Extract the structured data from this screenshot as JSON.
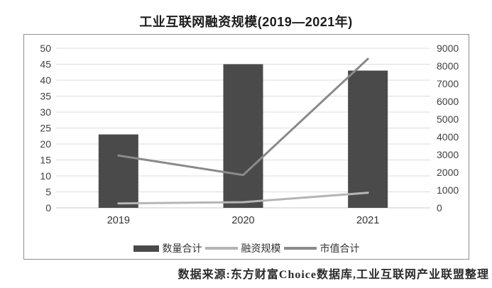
{
  "source_note": "数据来源:东方财富Choice数据库,工业互联网产业联盟整理",
  "chart_data": {
    "type": "combo",
    "title": "工业互联网融资规模(2019—2021年)",
    "categories": [
      "2019",
      "2020",
      "2021"
    ],
    "series": [
      {
        "name": "数量合计",
        "type": "bar",
        "axis": "left",
        "values": [
          23,
          45,
          43
        ],
        "color": "#4a4a4a"
      },
      {
        "name": "融资规模",
        "type": "line",
        "axis": "right",
        "values": [
          250,
          320,
          850
        ],
        "color": "#b5b5b5"
      },
      {
        "name": "市值合计",
        "type": "line",
        "axis": "right",
        "values": [
          2950,
          1850,
          8400
        ],
        "color": "#8a8a8a"
      }
    ],
    "left_axis": {
      "min": 0,
      "max": 50,
      "step": 5,
      "ticks": [
        0,
        5,
        10,
        15,
        20,
        25,
        30,
        35,
        40,
        45,
        50
      ]
    },
    "right_axis": {
      "min": 0,
      "max": 9000,
      "step": 1000,
      "ticks": [
        0,
        1000,
        2000,
        3000,
        4000,
        5000,
        6000,
        7000,
        8000,
        9000
      ]
    },
    "grid": "horizontal",
    "legend_position": "bottom",
    "colors": {
      "gridline": "#dcdcdc",
      "baseline": "#c9c9c9",
      "tick_label": "#404040",
      "category_label": "#333333",
      "border": "#8e8e8e"
    }
  }
}
